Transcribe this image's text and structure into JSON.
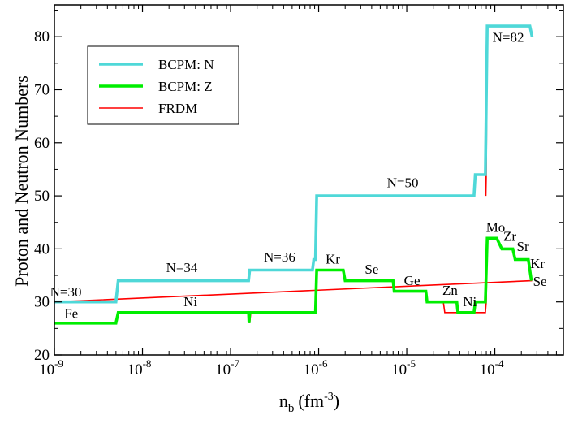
{
  "chart_data": {
    "type": "line",
    "title": "",
    "xlabel": {
      "base": "n",
      "sub": "b",
      "unit": "(fm",
      "sup": "-3",
      "close": ")"
    },
    "ylabel": "Proton and Neutron Numbers",
    "xscale": "log",
    "xlim": [
      1e-09,
      0.0006
    ],
    "ylim": [
      20,
      86
    ],
    "x_ticks": [
      {
        "value": 1e-09,
        "base": "10",
        "exp": "-9"
      },
      {
        "value": 1e-08,
        "base": "10",
        "exp": "-8"
      },
      {
        "value": 1e-07,
        "base": "10",
        "exp": "-7"
      },
      {
        "value": 1e-06,
        "base": "10",
        "exp": "-6"
      },
      {
        "value": 1e-05,
        "base": "10",
        "exp": "-5"
      },
      {
        "value": 0.0001,
        "base": "10",
        "exp": "-4"
      }
    ],
    "y_ticks": [
      20,
      30,
      40,
      50,
      60,
      70,
      80
    ],
    "grid": false,
    "legend_position": "top-left",
    "series": [
      {
        "name": "FRDM",
        "color": "#ff0000",
        "points": [
          [
            1e-09,
            26
          ],
          [
            5e-09,
            26
          ],
          [
            5.3e-09,
            28
          ],
          [
            1.6e-07,
            28
          ],
          [
            1.65e-07,
            26
          ],
          [
            1.7e-07,
            28
          ],
          [
            9.2e-07,
            28
          ],
          [
            9.5e-07,
            36
          ],
          [
            1.9e-06,
            36
          ],
          [
            2e-06,
            34
          ],
          [
            7e-06,
            34
          ],
          [
            7.2e-06,
            32
          ],
          [
            1.65e-05,
            32
          ],
          [
            1.7e-05,
            30
          ],
          [
            2.6e-05,
            30
          ],
          [
            2.7e-05,
            28
          ],
          [
            4e-05,
            28
          ],
          [
            4.1e-05,
            28
          ],
          [
            5.8e-05,
            28
          ],
          [
            6e-05,
            28
          ],
          [
            7.8e-05,
            28
          ],
          [
            8e-05,
            30
          ],
          [
            8.2e-05,
            42
          ],
          [
            0.000105,
            42
          ],
          [
            0.00012,
            40
          ],
          [
            0.00016,
            40
          ],
          [
            0.00017,
            38
          ],
          [
            0.00024,
            38
          ],
          [
            0.00025,
            36
          ],
          [
            0.00026,
            34
          ],
          [
            1e-09,
            30
          ],
          [
            1.5e-09,
            30
          ],
          [
            5e-09,
            30
          ],
          [
            5.3e-09,
            34
          ],
          [
            1.6e-07,
            34
          ],
          [
            1.65e-07,
            36
          ],
          [
            8.5e-07,
            36
          ],
          [
            8.8e-07,
            38
          ],
          [
            9.2e-07,
            38
          ],
          [
            9.5e-07,
            50
          ],
          [
            5.8e-05,
            50
          ],
          [
            6e-05,
            54
          ],
          [
            7.8e-05,
            54
          ],
          [
            7.9e-05,
            50
          ],
          [
            8e-05,
            54
          ],
          [
            8.2e-05,
            82
          ],
          [
            0.00025,
            82
          ],
          [
            0.00026,
            80
          ]
        ]
      },
      {
        "name": "BCPM: N",
        "color": "#4fd8d8",
        "points": [
          [
            1e-09,
            30
          ],
          [
            5e-09,
            30
          ],
          [
            5.3e-09,
            34
          ],
          [
            1.6e-07,
            34
          ],
          [
            1.65e-07,
            36
          ],
          [
            8.5e-07,
            36
          ],
          [
            8.8e-07,
            38
          ],
          [
            9.2e-07,
            38
          ],
          [
            9.5e-07,
            50
          ],
          [
            5.8e-05,
            50
          ],
          [
            6e-05,
            54
          ],
          [
            7.8e-05,
            54
          ],
          [
            8.2e-05,
            82
          ],
          [
            0.00025,
            82
          ],
          [
            0.000265,
            80
          ]
        ]
      },
      {
        "name": "BCPM: Z",
        "color": "#00ee00",
        "points": [
          [
            1e-09,
            26
          ],
          [
            5e-09,
            26
          ],
          [
            5.3e-09,
            28
          ],
          [
            1.6e-07,
            28
          ],
          [
            1.62e-07,
            26
          ],
          [
            1.65e-07,
            28
          ],
          [
            9.2e-07,
            28
          ],
          [
            9.5e-07,
            36
          ],
          [
            1.9e-06,
            36
          ],
          [
            2e-06,
            34
          ],
          [
            7e-06,
            34
          ],
          [
            7.2e-06,
            32
          ],
          [
            1.65e-05,
            32
          ],
          [
            1.7e-05,
            30
          ],
          [
            3.7e-05,
            30
          ],
          [
            3.8e-05,
            28
          ],
          [
            5.8e-05,
            28
          ],
          [
            6e-05,
            30
          ],
          [
            7.8e-05,
            30
          ],
          [
            8.2e-05,
            42
          ],
          [
            0.000105,
            42
          ],
          [
            0.00012,
            40
          ],
          [
            0.00016,
            40
          ],
          [
            0.00017,
            38
          ],
          [
            0.00024,
            38
          ],
          [
            0.00025,
            36
          ],
          [
            0.00026,
            34
          ]
        ]
      }
    ],
    "legend": [
      {
        "label": "BCPM:  N",
        "color": "#4fd8d8",
        "width": 3.5
      },
      {
        "label": "BCPM:  Z",
        "color": "#00ee00",
        "width": 3.5
      },
      {
        "label": "FRDM",
        "color": "#ff0000",
        "width": 1.5
      }
    ],
    "annotations": [
      {
        "text": "N=30",
        "x": 1.35e-09,
        "y": 31.0
      },
      {
        "text": "N=34",
        "x": 2.8e-08,
        "y": 35.6
      },
      {
        "text": "N=36",
        "x": 3.6e-07,
        "y": 37.6
      },
      {
        "text": "N=50",
        "x": 9e-06,
        "y": 51.6
      },
      {
        "text": "N=82",
        "x": 0.000142,
        "y": 79.0
      },
      {
        "text": "Fe",
        "x": 1.55e-09,
        "y": 27.0
      },
      {
        "text": "Ni",
        "x": 3.5e-08,
        "y": 29.2
      },
      {
        "text": "Kr",
        "x": 1.45e-06,
        "y": 37.2
      },
      {
        "text": "Se",
        "x": 4e-06,
        "y": 35.3
      },
      {
        "text": "Ge",
        "x": 1.15e-05,
        "y": 33.2
      },
      {
        "text": "Zn",
        "x": 3.1e-05,
        "y": 31.3
      },
      {
        "text": "Ni",
        "x": 5.2e-05,
        "y": 29.2
      },
      {
        "text": "Mo",
        "x": 0.000102,
        "y": 43.2
      },
      {
        "text": "Zr",
        "x": 0.000148,
        "y": 41.5
      },
      {
        "text": "Sr",
        "x": 0.000208,
        "y": 39.6
      },
      {
        "text": "Kr",
        "x": 0.000305,
        "y": 36.4
      },
      {
        "text": "Se",
        "x": 0.000325,
        "y": 33.0
      }
    ]
  }
}
